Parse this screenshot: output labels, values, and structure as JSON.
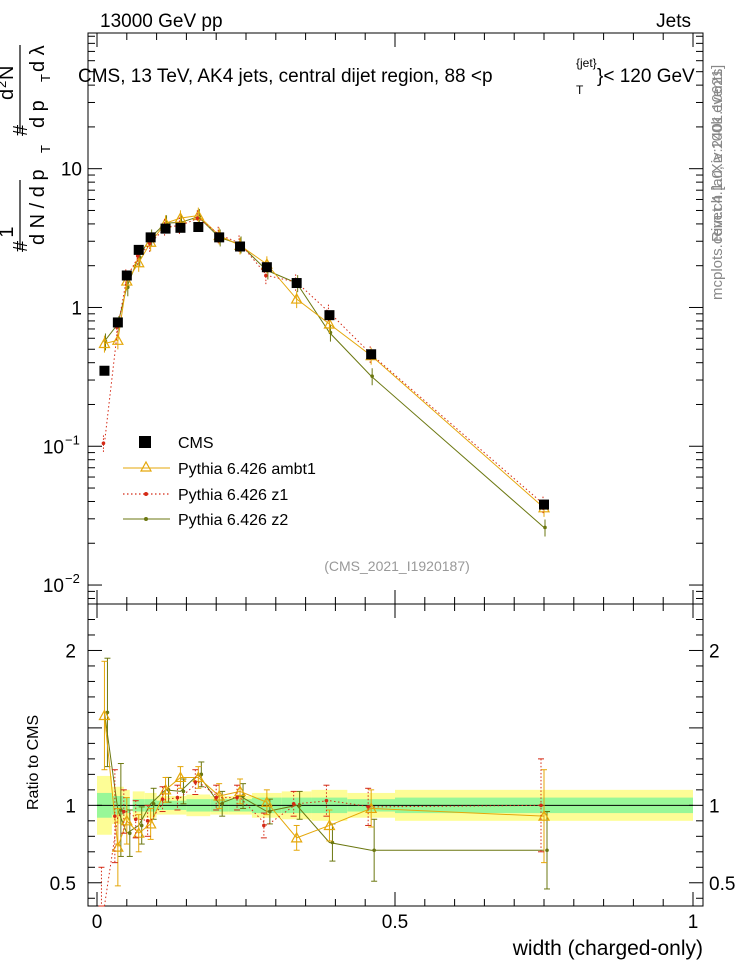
{
  "header": {
    "left": "13000 GeV pp",
    "right": "Jets",
    "title_main": "CMS, 13 TeV, AK4 jets, central dijet region, 88 <p",
    "title_sup": "{jet}",
    "title_sub": "T",
    "title_tail": "}< 120 GeV",
    "watermark": "(CMS_2021_I1920187)",
    "side_top": "Rivet 4.1.0, ≥ 100k events",
    "side_bottom": "mcplots.cern.ch [arXiv:2401.10621]"
  },
  "upper_ylabel": {
    "hash1": "#",
    "one": "1",
    "denominator": "d N / d p",
    "sub_t": "T",
    "hash2": "#",
    "numerator": "d",
    "sup_2": "2",
    "n": "N",
    "denominator2": "d p",
    "sub_t2": "T",
    "dlambda": "d λ"
  },
  "lower_ylabel": "Ratio to CMS",
  "xlabel": "width (charged-only)",
  "upper_ticks": [
    "10",
    "1",
    "10",
    "10"
  ],
  "upper_tick_exps": [
    "",
    "",
    "−1",
    "−2"
  ],
  "ratio_ticks": [
    "2",
    "1",
    "0.5"
  ],
  "x_ticks": [
    "0",
    "0.5",
    "1"
  ],
  "colors": {
    "ambt1": "#e5a70a",
    "z1": "#d42a16",
    "z2": "#6b7710",
    "band_inner": "#98f798",
    "band_outer": "#fdfd96"
  },
  "chart_data": {
    "type": "scatter",
    "x_range": [
      0,
      1
    ],
    "upper_y_log_range": [
      0.0073,
      95
    ],
    "ratio_y_range": [
      0.35,
      2.3
    ],
    "x": [
      0.0125,
      0.035,
      0.05,
      0.07,
      0.09,
      0.115,
      0.14,
      0.17,
      0.205,
      0.24,
      0.285,
      0.335,
      0.39,
      0.46,
      0.75
    ],
    "xerr": [
      0.0125,
      0.01,
      0.005,
      0.01,
      0.01,
      0.015,
      0.01,
      0.02,
      0.015,
      0.02,
      0.025,
      0.025,
      0.03,
      0.04,
      0.25
    ],
    "series": [
      {
        "name": "CMS",
        "values": [
          0.35,
          0.78,
          1.7,
          2.6,
          3.2,
          3.7,
          3.75,
          3.8,
          3.2,
          2.75,
          1.95,
          1.5,
          0.88,
          0.46,
          0.038
        ],
        "rel_err_inner": [
          0.08,
          0.06,
          0.05,
          0.04,
          0.04,
          0.03,
          0.03,
          0.04,
          0.04,
          0.04,
          0.05,
          0.05,
          0.05,
          0.04,
          0.05
        ],
        "rel_err_outer": [
          0.19,
          0.12,
          0.1,
          0.09,
          0.08,
          0.06,
          0.06,
          0.07,
          0.06,
          0.06,
          0.08,
          0.09,
          0.1,
          0.08,
          0.1
        ]
      },
      {
        "name": "Pythia 6.426 ambt1",
        "values": [
          0.55,
          0.58,
          1.55,
          2.1,
          2.95,
          4.05,
          4.4,
          4.6,
          3.3,
          2.8,
          2.05,
          1.15,
          0.76,
          0.45,
          0.036
        ],
        "ratio": [
          1.58,
          0.73,
          0.9,
          0.82,
          0.88,
          1.1,
          1.18,
          1.18,
          1.06,
          1.09,
          1.02,
          0.79,
          0.87,
          0.98,
          0.93
        ],
        "ratio_err": [
          0.35,
          0.25,
          0.15,
          0.12,
          0.1,
          0.08,
          0.07,
          0.07,
          0.08,
          0.08,
          0.08,
          0.08,
          0.1,
          0.12,
          0.3
        ]
      },
      {
        "name": "Pythia 6.426 z1",
        "values": [
          0.105,
          0.72,
          1.65,
          2.35,
          2.9,
          3.8,
          3.9,
          4.4,
          3.35,
          2.9,
          1.7,
          1.52,
          0.92,
          0.46,
          0.038
        ],
        "ratio": [
          0.3,
          0.93,
          0.96,
          0.91,
          0.9,
          1.04,
          1.05,
          1.15,
          1.05,
          1.05,
          0.87,
          1.01,
          1.03,
          0.99,
          1.0
        ],
        "ratio_err": [
          0.3,
          0.3,
          0.14,
          0.12,
          0.1,
          0.08,
          0.08,
          0.08,
          0.08,
          0.08,
          0.08,
          0.08,
          0.1,
          0.12,
          0.3
        ]
      },
      {
        "name": "Pythia 6.426 z2",
        "values": [
          0.57,
          0.76,
          1.4,
          2.3,
          3.2,
          4.05,
          4.1,
          4.5,
          3.2,
          2.85,
          1.85,
          1.5,
          0.66,
          0.32,
          0.026
        ],
        "ratio": [
          1.6,
          0.97,
          0.82,
          0.87,
          1.01,
          1.1,
          1.09,
          1.2,
          1.01,
          1.06,
          0.96,
          1.0,
          0.76,
          0.71,
          0.71
        ],
        "ratio_err": [
          0.35,
          0.3,
          0.15,
          0.12,
          0.1,
          0.08,
          0.08,
          0.08,
          0.08,
          0.08,
          0.08,
          0.09,
          0.12,
          0.2,
          0.25
        ]
      }
    ]
  }
}
